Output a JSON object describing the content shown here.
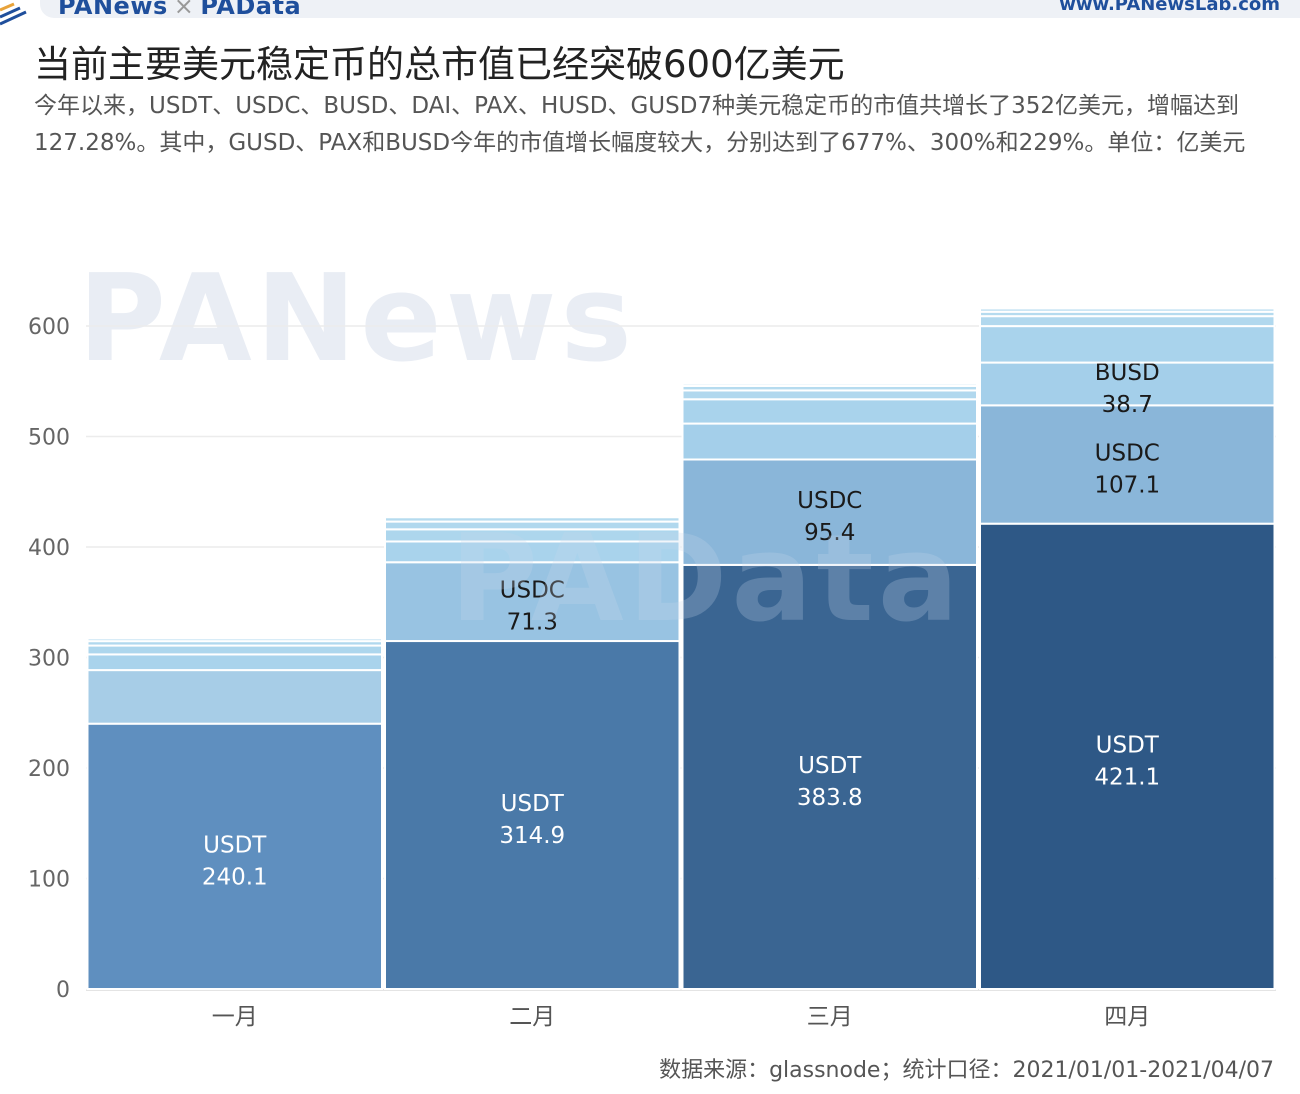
{
  "header": {
    "brand_left_1": "PANews",
    "brand_sep": "×",
    "brand_left_2": "PAData",
    "brand_right": "www.PANewsLab.com",
    "title": "当前主要美元稳定币的总市值已经突破600亿美元",
    "subtitle": "今年以来，USDT、USDC、BUSD、DAI、PAX、HUSD、GUSD7种美元稳定币的市值共增长了352亿美元，增幅达到127.28%。其中，GUSD、PAX和BUSD今年的市值增长幅度较大，分别达到了677%、300%和229%。单位：亿美元"
  },
  "watermark": {
    "text1": "PANews",
    "text2": "PAData"
  },
  "footer": {
    "source": "数据来源：glassnode；统计口径：2021/01/01-2021/04/07"
  },
  "chart_data": {
    "type": "bar",
    "stacked": true,
    "categories": [
      "一月",
      "二月",
      "三月",
      "四月"
    ],
    "ylim": [
      0,
      620
    ],
    "yticks": [
      0,
      100,
      200,
      300,
      400,
      500,
      600
    ],
    "grid": true,
    "series": [
      {
        "name": "USDT",
        "values": [
          240.1,
          314.9,
          383.8,
          421.1
        ],
        "colors": [
          "#5f8fbf",
          "#4a79a8",
          "#3a6592",
          "#2e5886"
        ],
        "label_values": [
          "240.1",
          "314.9",
          "383.8",
          "421.1"
        ]
      },
      {
        "name": "USDC",
        "values": [
          48.5,
          71.3,
          95.4,
          107.1
        ],
        "colors": [
          "#a7cde7",
          "#98c3e2",
          "#8ab6d9",
          "#8ab6d9"
        ],
        "label_values": [
          null,
          "71.3",
          "95.4",
          "107.1"
        ]
      },
      {
        "name": "BUSD",
        "values": [
          14.2,
          18.8,
          32.5,
          38.7
        ],
        "colors": [
          "#a9d3ec",
          "#a9d3ec",
          "#a4cfea",
          "#a4cfea"
        ],
        "label_values": [
          null,
          null,
          null,
          "38.7"
        ]
      },
      {
        "name": "DAI",
        "values": [
          8,
          11,
          22,
          33
        ],
        "colors": [
          "#add6ed",
          "#add6ed",
          "#a9d3ec",
          "#a9d3ec"
        ],
        "label_values": [
          null,
          null,
          null,
          null
        ]
      },
      {
        "name": "PAX",
        "values": [
          4,
          7,
          8,
          9
        ],
        "colors": [
          "#b1d8ee",
          "#b1d8ee",
          "#b1d8ee",
          "#b1d8ee"
        ],
        "label_values": [
          null,
          null,
          null,
          null
        ]
      },
      {
        "name": "HUSD",
        "values": [
          2.5,
          4,
          4,
          4
        ],
        "colors": [
          "#b5dbef",
          "#b5dbef",
          "#b5dbef",
          "#b5dbef"
        ],
        "label_values": [
          null,
          null,
          null,
          null
        ]
      },
      {
        "name": "GUSD",
        "values": [
          0.3,
          1,
          2,
          3
        ],
        "colors": [
          "#badef1",
          "#badef1",
          "#badef1",
          "#badef1"
        ],
        "label_values": [
          null,
          null,
          null,
          null
        ]
      }
    ]
  }
}
